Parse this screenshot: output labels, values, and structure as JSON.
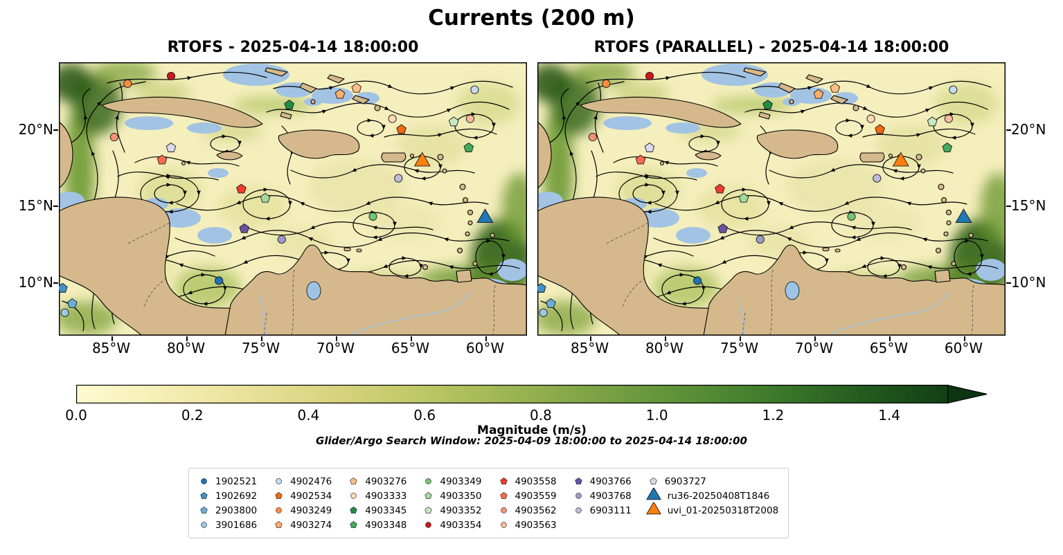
{
  "figure": {
    "title": "Currents (200 m)"
  },
  "panels": [
    {
      "title": "RTOFS - 2025-04-14 18:00:00"
    },
    {
      "title": "RTOFS (PARALLEL) - 2025-04-14 18:00:00"
    }
  ],
  "axes": {
    "x_ticks": [
      {
        "value": -85,
        "label": "85°W"
      },
      {
        "value": -80,
        "label": "80°W"
      },
      {
        "value": -75,
        "label": "75°W"
      },
      {
        "value": -70,
        "label": "70°W"
      },
      {
        "value": -65,
        "label": "65°W"
      },
      {
        "value": -60,
        "label": "60°W"
      }
    ],
    "y_ticks": [
      {
        "value": 20,
        "label": "20°N"
      },
      {
        "value": 15,
        "label": "15°N"
      },
      {
        "value": 10,
        "label": "10°N"
      }
    ]
  },
  "colorbar": {
    "label": "Magnitude (m/s)",
    "vmin": 0.0,
    "vmax": 1.5,
    "extend": "max",
    "ticks": [
      {
        "value": 0.0,
        "label": "0.0"
      },
      {
        "value": 0.2,
        "label": "0.2"
      },
      {
        "value": 0.4,
        "label": "0.4"
      },
      {
        "value": 0.6,
        "label": "0.6"
      },
      {
        "value": 0.8,
        "label": "0.8"
      },
      {
        "value": 1.0,
        "label": "1.0"
      },
      {
        "value": 1.2,
        "label": "1.2"
      },
      {
        "value": 1.4,
        "label": "1.4"
      }
    ],
    "gradient": [
      "#fdfbd0",
      "#f5eeb4",
      "#e9e098",
      "#d7d37d",
      "#bcc765",
      "#9cb452",
      "#7aa244",
      "#5b9038",
      "#3d7a2b",
      "#245c1f",
      "#123f15"
    ],
    "arrow_color": "#0c3511"
  },
  "annotations": {
    "search_window": "Glider/Argo Search Window: 2025-04-09 18:00:00 to 2025-04-14 18:00:00"
  },
  "legend": {
    "columns": [
      [
        {
          "label": "1902521",
          "shape": "circle",
          "color": "#2171b5"
        },
        {
          "label": "1902692",
          "shape": "pentagon",
          "color": "#4292c6"
        },
        {
          "label": "2903800",
          "shape": "pentagon",
          "color": "#6baed6"
        },
        {
          "label": "3901686",
          "shape": "circle",
          "color": "#9ecae1"
        }
      ],
      [
        {
          "label": "4902476",
          "shape": "circle",
          "color": "#c6dbef"
        },
        {
          "label": "4902534",
          "shape": "pentagon",
          "color": "#f16913"
        },
        {
          "label": "4903249",
          "shape": "circle",
          "color": "#fd8d3c"
        },
        {
          "label": "4903274",
          "shape": "pentagon",
          "color": "#fdae6b"
        }
      ],
      [
        {
          "label": "4903276",
          "shape": "pentagon",
          "color": "#fdbe85"
        },
        {
          "label": "4903333",
          "shape": "circle",
          "color": "#fdd9b4"
        },
        {
          "label": "4903345",
          "shape": "pentagon",
          "color": "#238b45"
        },
        {
          "label": "4903348",
          "shape": "pentagon",
          "color": "#41ab5d"
        }
      ],
      [
        {
          "label": "4903349",
          "shape": "circle",
          "color": "#74c476"
        },
        {
          "label": "4903350",
          "shape": "pentagon",
          "color": "#a1d99b"
        },
        {
          "label": "4903352",
          "shape": "pentagon",
          "color": "#c7e9c0"
        },
        {
          "label": "4903354",
          "shape": "circle",
          "color": "#cb181d"
        }
      ],
      [
        {
          "label": "4903558",
          "shape": "pentagon",
          "color": "#ef3b2c"
        },
        {
          "label": "4903559",
          "shape": "pentagon",
          "color": "#fb6a4a"
        },
        {
          "label": "4903562",
          "shape": "circle",
          "color": "#fc9272"
        },
        {
          "label": "4903563",
          "shape": "circle",
          "color": "#fcbba1"
        }
      ],
      [
        {
          "label": "4903766",
          "shape": "pentagon",
          "color": "#6a51a3"
        },
        {
          "label": "4903768",
          "shape": "circle",
          "color": "#9e9ac8"
        },
        {
          "label": "6903111",
          "shape": "circle",
          "color": "#bcbddc"
        }
      ],
      [
        {
          "label": "6903727",
          "shape": "pentagon",
          "color": "#dadaeb"
        },
        {
          "label": "ru36-20250408T1846",
          "shape": "triangle",
          "color": "#1f77b4"
        },
        {
          "label": "uvi_01-20250318T2008",
          "shape": "triangle",
          "color": "#ff7f0e"
        }
      ]
    ]
  },
  "chart_data": {
    "type": "map_streamplot",
    "title": "Currents (200 m)",
    "panels": [
      "RTOFS - 2025-04-14 18:00:00",
      "RTOFS (PARALLEL) - 2025-04-14 18:00:00"
    ],
    "field": "ocean current magnitude at 200 m depth",
    "units": "m/s",
    "extent": {
      "lon_min": -88.5,
      "lon_max": -57.2,
      "lat_min": 6.5,
      "lat_max": 24.4
    },
    "colorbar": {
      "label": "Magnitude (m/s)",
      "range": [
        0.0,
        1.5
      ],
      "tick_step": 0.2,
      "extend": "max"
    },
    "markers": [
      {
        "id": "1902521",
        "lon": -77.8,
        "lat": 10.1
      },
      {
        "id": "1902692",
        "lon": -88.25,
        "lat": 9.6
      },
      {
        "id": "2903800",
        "lon": -87.6,
        "lat": 8.6
      },
      {
        "id": "3901686",
        "lon": -88.1,
        "lat": 8.0
      },
      {
        "id": "4902476",
        "lon": -60.7,
        "lat": 22.6
      },
      {
        "id": "4902534",
        "lon": -65.6,
        "lat": 20.0
      },
      {
        "id": "4903249",
        "lon": -83.9,
        "lat": 23.0
      },
      {
        "id": "4903274",
        "lon": -69.7,
        "lat": 22.3
      },
      {
        "id": "4903276",
        "lon": -68.6,
        "lat": 22.7
      },
      {
        "id": "4903333",
        "lon": -66.2,
        "lat": 20.7
      },
      {
        "id": "4903345",
        "lon": -73.1,
        "lat": 21.6
      },
      {
        "id": "4903348",
        "lon": -61.1,
        "lat": 18.8
      },
      {
        "id": "4903349",
        "lon": -67.5,
        "lat": 14.3
      },
      {
        "id": "4903350",
        "lon": -74.7,
        "lat": 15.5
      },
      {
        "id": "4903352",
        "lon": -62.1,
        "lat": 20.5
      },
      {
        "id": "4903354",
        "lon": -81.0,
        "lat": 23.5
      },
      {
        "id": "4903558",
        "lon": -76.3,
        "lat": 16.1
      },
      {
        "id": "4903559",
        "lon": -81.6,
        "lat": 18.0
      },
      {
        "id": "4903562",
        "lon": -84.8,
        "lat": 19.5
      },
      {
        "id": "4903563",
        "lon": -61.0,
        "lat": 20.7
      },
      {
        "id": "4903766",
        "lon": -76.1,
        "lat": 13.5
      },
      {
        "id": "4903768",
        "lon": -73.6,
        "lat": 12.8
      },
      {
        "id": "6903111",
        "lon": -65.8,
        "lat": 16.8
      },
      {
        "id": "6903727",
        "lon": -81.0,
        "lat": 18.8
      },
      {
        "id": "ru36-20250408T1846",
        "lon": -60.0,
        "lat": 14.2
      },
      {
        "id": "uvi_01-20250318T2008",
        "lon": -64.2,
        "lat": 17.9
      }
    ]
  }
}
